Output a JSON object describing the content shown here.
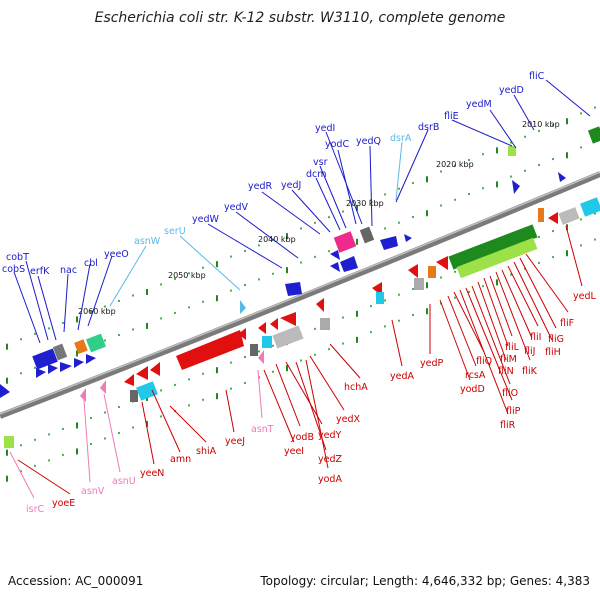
{
  "title": "Escherichia coli str. K-12 substr. W3110, complete genome",
  "footer": {
    "accession": "Accession: AC_000091",
    "topology": "Topology: circular; Length: 4,646,332 bp; Genes: 4,383"
  },
  "colors": {
    "protein_label": "#1a1acc",
    "rna_label": "#5bb8e6",
    "trna_label": "#f07ab8",
    "reverse_label": "#cc0000",
    "backbone": "#7a7a7a"
  },
  "ticks": [
    "2010 kbp",
    "2020 kbp",
    "2030 kbp",
    "2040 kbp",
    "2050 kbp",
    "2060 kbp"
  ],
  "labels_top": [
    "cobT",
    "cobS",
    "erfK",
    "nac",
    "cbl",
    "yeeO",
    "asnW",
    "serU",
    "yedW",
    "yedV",
    "yedR",
    "yedJ",
    "dcm",
    "vsr",
    "yodC",
    "yedI",
    "yedQ",
    "dsrA",
    "dsrB",
    "fliE",
    "yedM",
    "yedD",
    "fliC"
  ],
  "labels_bottom": [
    "isrC",
    "yoeE",
    "asnV",
    "asnU",
    "yeeN",
    "amn",
    "shiA",
    "yeeJ",
    "asnT",
    "yeeI",
    "yodB",
    "yedY",
    "yedZ",
    "yodA",
    "yedX",
    "hchA",
    "yedA",
    "yedP",
    "yodD",
    "rcsA",
    "fliQ",
    "fliR",
    "fliP",
    "fliO",
    "fliN",
    "fliM",
    "fliL",
    "fliK",
    "fliJ",
    "fliI",
    "fliH",
    "fliG",
    "fliF",
    "yedL"
  ]
}
